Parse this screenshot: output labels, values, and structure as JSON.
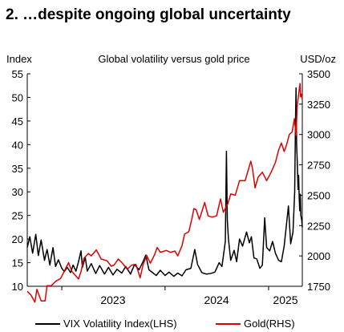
{
  "heading": "2. …despite ongoing global uncertainty",
  "chart_data": {
    "type": "line",
    "title": "Global volatility versus gold price",
    "left_axis_label": "Index",
    "right_axis_label": "USD/oz",
    "left_ylim": [
      10,
      55
    ],
    "right_ylim": [
      1750,
      3500
    ],
    "left_ticks": [
      "10",
      "15",
      "20",
      "25",
      "30",
      "35",
      "40",
      "45",
      "50",
      "55"
    ],
    "right_ticks": [
      "1750",
      "2000",
      "2250",
      "2500",
      "2750",
      "3000",
      "3250",
      "3500"
    ],
    "x_range": [
      "2022-09-01",
      "2025-04-30"
    ],
    "x_year_labels": [
      "2023",
      "2024",
      "2025"
    ],
    "grid": false,
    "legend_position": "bottom",
    "series": [
      {
        "name": "VIX Volatility Index(LHS)",
        "axis": "left",
        "color": "#000000",
        "points": [
          [
            "2022-09-01",
            18.2
          ],
          [
            "2022-09-10",
            20.5
          ],
          [
            "2022-09-20",
            17.0
          ],
          [
            "2022-10-01",
            21.0
          ],
          [
            "2022-10-10",
            16.5
          ],
          [
            "2022-10-20",
            19.8
          ],
          [
            "2022-11-01",
            15.5
          ],
          [
            "2022-11-10",
            17.8
          ],
          [
            "2022-11-20",
            14.5
          ],
          [
            "2022-12-01",
            18.2
          ],
          [
            "2022-12-10",
            14.2
          ],
          [
            "2022-12-20",
            15.6
          ],
          [
            "2023-01-01",
            13.8
          ],
          [
            "2023-01-10",
            13.1
          ],
          [
            "2023-01-20",
            14.0
          ],
          [
            "2023-02-01",
            12.9
          ],
          [
            "2023-02-10",
            14.5
          ],
          [
            "2023-02-20",
            13.2
          ],
          [
            "2023-03-01",
            15.2
          ],
          [
            "2023-03-10",
            17.5
          ],
          [
            "2023-03-15",
            14.0
          ],
          [
            "2023-03-25",
            16.2
          ],
          [
            "2023-04-01",
            13.2
          ],
          [
            "2023-04-15",
            14.8
          ],
          [
            "2023-05-01",
            12.7
          ],
          [
            "2023-05-15",
            14.4
          ],
          [
            "2023-06-01",
            12.6
          ],
          [
            "2023-06-15",
            14.0
          ],
          [
            "2023-07-01",
            12.4
          ],
          [
            "2023-07-15",
            13.6
          ],
          [
            "2023-08-01",
            12.8
          ],
          [
            "2023-08-15",
            14.2
          ],
          [
            "2023-09-01",
            12.6
          ],
          [
            "2023-09-15",
            14.6
          ],
          [
            "2023-10-01",
            13.5
          ],
          [
            "2023-10-15",
            15.2
          ],
          [
            "2023-10-25",
            16.6
          ],
          [
            "2023-11-05",
            13.5
          ],
          [
            "2023-11-20",
            12.8
          ],
          [
            "2023-12-01",
            12.3
          ],
          [
            "2023-12-15",
            13.4
          ],
          [
            "2024-01-01",
            12.3
          ],
          [
            "2024-01-15",
            13.0
          ],
          [
            "2024-02-01",
            12.1
          ],
          [
            "2024-02-15",
            12.8
          ],
          [
            "2024-03-01",
            12.2
          ],
          [
            "2024-03-15",
            13.5
          ],
          [
            "2024-04-01",
            13.8
          ],
          [
            "2024-04-15",
            17.8
          ],
          [
            "2024-04-25",
            14.6
          ],
          [
            "2024-05-10",
            12.9
          ],
          [
            "2024-05-25",
            12.6
          ],
          [
            "2024-06-10",
            12.7
          ],
          [
            "2024-06-25",
            13.0
          ],
          [
            "2024-07-10",
            15.0
          ],
          [
            "2024-07-20",
            14.2
          ],
          [
            "2024-08-01",
            19.5
          ],
          [
            "2024-08-05",
            38.6
          ],
          [
            "2024-08-08",
            24.0
          ],
          [
            "2024-08-12",
            20.0
          ],
          [
            "2024-08-20",
            15.5
          ],
          [
            "2024-09-01",
            17.6
          ],
          [
            "2024-09-10",
            15.2
          ],
          [
            "2024-09-20",
            20.0
          ],
          [
            "2024-10-01",
            18.5
          ],
          [
            "2024-10-15",
            21.5
          ],
          [
            "2024-10-25",
            19.2
          ],
          [
            "2024-11-01",
            20.5
          ],
          [
            "2024-11-10",
            16.0
          ],
          [
            "2024-11-20",
            15.8
          ],
          [
            "2024-12-01",
            13.8
          ],
          [
            "2024-12-10",
            14.5
          ],
          [
            "2024-12-18",
            24.5
          ],
          [
            "2024-12-25",
            18.2
          ],
          [
            "2025-01-05",
            17.5
          ],
          [
            "2025-01-15",
            19.5
          ],
          [
            "2025-01-25",
            17.0
          ],
          [
            "2025-02-05",
            15.5
          ],
          [
            "2025-02-15",
            15.2
          ],
          [
            "2025-02-25",
            18.5
          ],
          [
            "2025-03-05",
            23.0
          ],
          [
            "2025-03-12",
            27.0
          ],
          [
            "2025-03-20",
            19.0
          ],
          [
            "2025-03-28",
            21.5
          ],
          [
            "2025-04-03",
            30.0
          ],
          [
            "2025-04-06",
            45.0
          ],
          [
            "2025-04-08",
            52.0
          ],
          [
            "2025-04-10",
            40.0
          ],
          [
            "2025-04-12",
            37.0
          ],
          [
            "2025-04-15",
            30.5
          ],
          [
            "2025-04-17",
            33.5
          ],
          [
            "2025-04-19",
            29.0
          ],
          [
            "2025-04-21",
            26.0
          ],
          [
            "2025-04-23",
            29.5
          ],
          [
            "2025-04-25",
            25.0
          ],
          [
            "2025-04-28",
            24.0
          ],
          [
            "2025-04-30",
            22.5
          ]
        ]
      },
      {
        "name": "Gold(RHS)",
        "axis": "right",
        "color": "#e00000",
        "points": [
          [
            "2022-09-01",
            1710
          ],
          [
            "2022-09-15",
            1675
          ],
          [
            "2022-09-28",
            1620
          ],
          [
            "2022-10-05",
            1725
          ],
          [
            "2022-10-20",
            1630
          ],
          [
            "2022-11-03",
            1630
          ],
          [
            "2022-11-10",
            1755
          ],
          [
            "2022-11-25",
            1755
          ],
          [
            "2022-12-10",
            1790
          ],
          [
            "2022-12-28",
            1815
          ],
          [
            "2023-01-10",
            1875
          ],
          [
            "2023-01-25",
            1945
          ],
          [
            "2023-02-05",
            1875
          ],
          [
            "2023-02-20",
            1835
          ],
          [
            "2023-03-01",
            1810
          ],
          [
            "2023-03-10",
            1870
          ],
          [
            "2023-03-20",
            1980
          ],
          [
            "2023-04-05",
            2020
          ],
          [
            "2023-04-15",
            2000
          ],
          [
            "2023-05-03",
            2050
          ],
          [
            "2023-05-20",
            1975
          ],
          [
            "2023-06-10",
            1960
          ],
          [
            "2023-06-25",
            1915
          ],
          [
            "2023-07-05",
            1925
          ],
          [
            "2023-07-20",
            1975
          ],
          [
            "2023-08-05",
            1935
          ],
          [
            "2023-08-20",
            1890
          ],
          [
            "2023-09-05",
            1925
          ],
          [
            "2023-09-20",
            1930
          ],
          [
            "2023-10-05",
            1820
          ],
          [
            "2023-10-15",
            1925
          ],
          [
            "2023-10-28",
            2005
          ],
          [
            "2023-11-10",
            1940
          ],
          [
            "2023-11-25",
            2010
          ],
          [
            "2023-12-04",
            2070
          ],
          [
            "2023-12-15",
            2030
          ],
          [
            "2024-01-05",
            2045
          ],
          [
            "2024-01-20",
            2030
          ],
          [
            "2024-02-05",
            2040
          ],
          [
            "2024-02-15",
            2000
          ],
          [
            "2024-03-01",
            2085
          ],
          [
            "2024-03-10",
            2180
          ],
          [
            "2024-03-25",
            2200
          ],
          [
            "2024-04-05",
            2310
          ],
          [
            "2024-04-12",
            2390
          ],
          [
            "2024-04-20",
            2380
          ],
          [
            "2024-05-01",
            2300
          ],
          [
            "2024-05-20",
            2440
          ],
          [
            "2024-06-01",
            2330
          ],
          [
            "2024-06-15",
            2320
          ],
          [
            "2024-07-01",
            2330
          ],
          [
            "2024-07-15",
            2470
          ],
          [
            "2024-07-25",
            2360
          ],
          [
            "2024-08-10",
            2430
          ],
          [
            "2024-08-20",
            2510
          ],
          [
            "2024-09-05",
            2500
          ],
          [
            "2024-09-20",
            2620
          ],
          [
            "2024-10-10",
            2620
          ],
          [
            "2024-10-30",
            2780
          ],
          [
            "2024-11-05",
            2720
          ],
          [
            "2024-11-14",
            2560
          ],
          [
            "2024-11-25",
            2650
          ],
          [
            "2024-12-10",
            2690
          ],
          [
            "2024-12-25",
            2620
          ],
          [
            "2025-01-10",
            2690
          ],
          [
            "2025-01-25",
            2770
          ],
          [
            "2025-02-05",
            2870
          ],
          [
            "2025-02-15",
            2930
          ],
          [
            "2025-02-25",
            2860
          ],
          [
            "2025-03-05",
            2910
          ],
          [
            "2025-03-15",
            3000
          ],
          [
            "2025-03-25",
            3020
          ],
          [
            "2025-04-02",
            3130
          ],
          [
            "2025-04-08",
            2990
          ],
          [
            "2025-04-12",
            3230
          ],
          [
            "2025-04-17",
            3330
          ],
          [
            "2025-04-22",
            3420
          ],
          [
            "2025-04-24",
            3310
          ],
          [
            "2025-04-27",
            3330
          ],
          [
            "2025-04-30",
            3290
          ]
        ]
      }
    ]
  }
}
